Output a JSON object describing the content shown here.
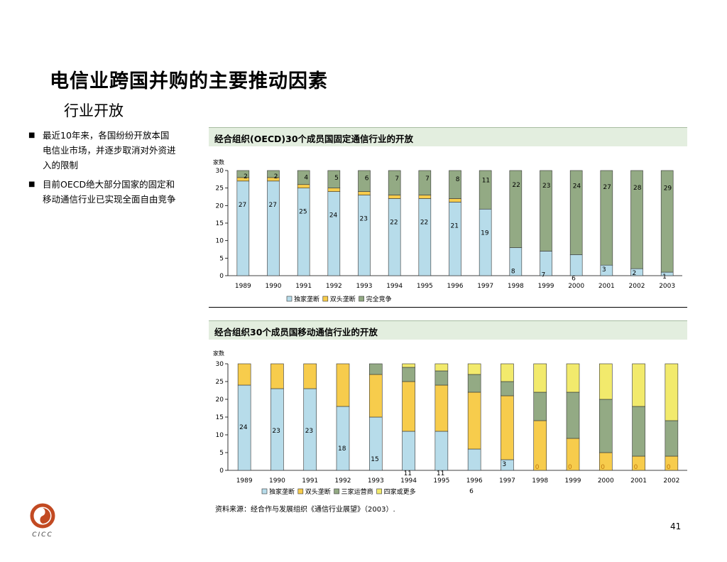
{
  "title": "电信业跨国并购的主要推动因素",
  "subtitle": "行业开放",
  "bullets": [
    "最近10年来，各国纷纷开放本国电信业市场，并逐步取消对外资进入的限制",
    "目前OECD绝大部分国家的固定和移动通信行业已实现全面自由竞争"
  ],
  "chart1": {
    "header": "经合组织(OECD)30个成员国固定通信行业的开放"
  },
  "chart2": {
    "header": "经合组织30个成员国移动通信行业的开放"
  },
  "source": "资料来源：经合作与发展组织《通信行业展望》（2003）.",
  "page_number": "41",
  "logo_text": "CICC",
  "colors": {
    "monopoly": "#b7dcea",
    "duopoly": "#f7cc4c",
    "full_competition": "#93aa84",
    "three_operators": "#93aa84",
    "four_or_more": "#f2ea6c",
    "header_bg": "#e3eedf",
    "logo": "#c24a22"
  },
  "chart_data": [
    {
      "type": "bar",
      "stacked": true,
      "ylabel": "家数",
      "ylim": [
        0,
        30
      ],
      "yticks": [
        0,
        5,
        10,
        15,
        20,
        25,
        30
      ],
      "categories": [
        "1989",
        "1990",
        "1991",
        "1992",
        "1993",
        "1994",
        "1995",
        "1996",
        "1997",
        "1998",
        "1999",
        "2000",
        "2001",
        "2002",
        "2003"
      ],
      "series": [
        {
          "name": "独家垄断",
          "color": "#b7dcea",
          "values": [
            27,
            27,
            25,
            24,
            23,
            22,
            22,
            21,
            19,
            8,
            7,
            6,
            3,
            2,
            1
          ]
        },
        {
          "name": "双头垄断",
          "color": "#f7cc4c",
          "values": [
            1,
            1,
            1,
            1,
            1,
            1,
            1,
            1,
            0,
            0,
            0,
            0,
            0,
            0,
            0
          ]
        },
        {
          "name": "完全竞争",
          "color": "#93aa84",
          "values": [
            2,
            2,
            4,
            5,
            6,
            7,
            7,
            8,
            11,
            22,
            23,
            24,
            27,
            28,
            29
          ]
        }
      ],
      "data_labels": {
        "monopoly": [
          "27",
          "27",
          "25",
          "24",
          "23",
          "22",
          "22",
          "21",
          "19",
          "8",
          "7",
          "6",
          "3",
          "2",
          "1"
        ],
        "competition": [
          "2",
          "2",
          "4",
          "5",
          "6",
          "7",
          "7",
          "8",
          "11",
          "22",
          "23",
          "24",
          "27",
          "28",
          "29"
        ]
      },
      "legend": "bottom"
    },
    {
      "type": "bar",
      "stacked": true,
      "ylabel": "家数",
      "ylim": [
        0,
        30
      ],
      "yticks": [
        0,
        5,
        10,
        15,
        20,
        25,
        30
      ],
      "categories": [
        "1989",
        "1990",
        "1991",
        "1992",
        "1993",
        "1994",
        "1995",
        "1996",
        "1997",
        "1998",
        "1999",
        "2000",
        "2001",
        "2002"
      ],
      "series": [
        {
          "name": "独家垄断",
          "color": "#b7dcea",
          "values": [
            24,
            23,
            23,
            18,
            15,
            11,
            11,
            6,
            3,
            0,
            0,
            0,
            0,
            0
          ]
        },
        {
          "name": "双头垄断",
          "color": "#f7cc4c",
          "values": [
            6,
            7,
            7,
            12,
            12,
            14,
            13,
            16,
            18,
            14,
            9,
            5,
            4,
            4
          ]
        },
        {
          "name": "三家运营商",
          "color": "#93aa84",
          "values": [
            0,
            0,
            0,
            0,
            3,
            4,
            4,
            5,
            4,
            8,
            13,
            15,
            14,
            10
          ]
        },
        {
          "name": "四家或更多",
          "color": "#f2ea6c",
          "values": [
            0,
            0,
            0,
            0,
            0,
            1,
            2,
            3,
            5,
            8,
            8,
            10,
            12,
            16
          ]
        }
      ],
      "data_labels": {
        "monopoly": [
          "24",
          "23",
          "23",
          "18",
          "15",
          "11",
          "11",
          "6",
          "3",
          "0",
          "0",
          "0",
          "0",
          "0"
        ]
      },
      "legend": "bottom"
    }
  ]
}
